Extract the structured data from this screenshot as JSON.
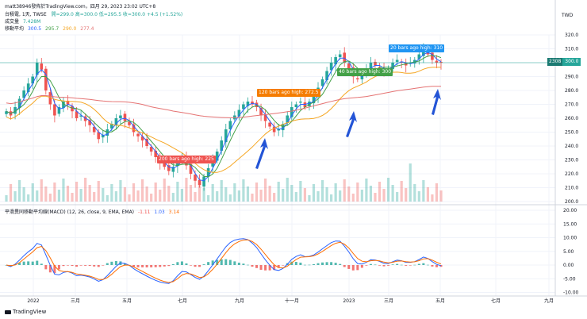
{
  "header": {
    "line1": "matt38946發佈於TradingView.com，四月 29, 2023 23:02 UTC+8",
    "symbol": "台積電, 1天, TWSE",
    "ohlc": "開=299.0  高=300.0  低=295.5  收=300.0  +4.5 (+1.52%)",
    "volume_label": "成交量",
    "volume_value": "7.428M",
    "ma_label": "移動平均",
    "ma_values": [
      "300.5",
      "295.7",
      "290.0",
      "277.4"
    ]
  },
  "macd": {
    "label": "平滑異同移動平均線(MACD) (12, 26, close, 9, EMA, EMA)",
    "values": [
      "-1.11",
      "1.03",
      "3.14"
    ]
  },
  "currency": "TWD",
  "price_tag": {
    "left": "2308",
    "right": "300.0"
  },
  "price_axis": [
    "320.0",
    "310.0",
    "300.0",
    "290.0",
    "280.0",
    "270.0",
    "260.0",
    "250.0",
    "240.0",
    "230.0",
    "220.0",
    "210.0",
    "200.0"
  ],
  "macd_axis": [
    "20.00",
    "15.00",
    "10.00",
    "5.00",
    "0.00",
    "-5.00",
    "-10.00"
  ],
  "time_axis": [
    "2022",
    "三月",
    "五月",
    "七月",
    "九月",
    "十一月",
    "2023",
    "三月",
    "五月",
    "七月",
    "九月"
  ],
  "annotations": {
    "a1": "20 bars ago high: 310",
    "a2": "40 bars ago high: 300",
    "a3": "120 bars ago high: 272.5",
    "a4": "200 bars ago high: 225"
  },
  "footer": {
    "brand": "TradingView"
  },
  "colors": {
    "up": "#26a69a",
    "down": "#ef5350",
    "ma1": "#2962ff",
    "ma2": "#43a047",
    "ma3": "#f5a623",
    "ma4": "#e57373",
    "arrow": "#2354d6",
    "macd_line": "#2962ff",
    "signal_line": "#ff6d00"
  },
  "chart_data": {
    "type": "candlestick",
    "title": "台積電, 1天, TWSE",
    "ylabel": "TWD",
    "ylim": [
      200,
      325
    ],
    "x_start": "2022-01",
    "x_end": "2023-09",
    "closes": [
      265,
      262,
      268,
      274,
      280,
      285,
      290,
      300,
      295,
      280,
      270,
      262,
      268,
      272,
      270,
      265,
      260,
      262,
      258,
      255,
      250,
      245,
      248,
      252,
      256,
      260,
      262,
      258,
      255,
      250,
      247,
      244,
      240,
      236,
      232,
      228,
      225,
      222,
      225,
      230,
      232,
      226,
      220,
      215,
      212,
      218,
      224,
      230,
      236,
      244,
      252,
      258,
      262,
      266,
      270,
      272,
      270,
      268,
      262,
      258,
      254,
      250,
      252,
      256,
      262,
      268,
      270,
      272,
      268,
      272,
      276,
      282,
      288,
      294,
      300,
      304,
      306,
      300,
      296,
      290,
      288,
      292,
      296,
      300,
      298,
      296,
      294,
      296,
      300,
      302,
      300,
      298,
      300,
      302,
      306,
      310,
      306,
      302,
      300,
      300
    ],
    "ma_periods": [
      20,
      40,
      120,
      200
    ],
    "ma_last": [
      300.5,
      295.7,
      290.0,
      277.4
    ],
    "macd_last": {
      "histogram": -1.11,
      "macd": 1.03,
      "signal": 3.14
    },
    "macd_ylim": [
      -12,
      22
    ]
  }
}
